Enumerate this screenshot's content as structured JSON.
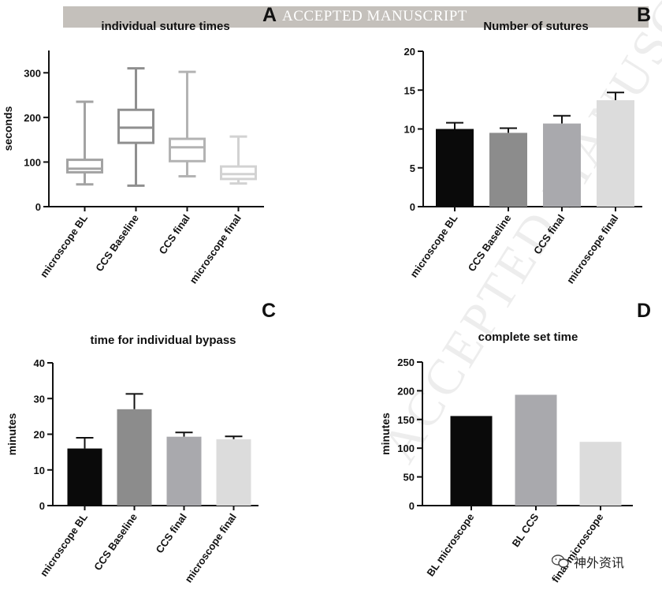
{
  "banner": {
    "text": "ACCEPTED MANUSCRIPT"
  },
  "watermark": {
    "text": "ACCEPTED MANUSCRIPT"
  },
  "footer": {
    "label": "神外资讯",
    "icon": "wechat-icon"
  },
  "colors": {
    "black": "#0a0a0a",
    "dark_gray": "#8c8c8c",
    "mid_gray": "#a9a9ad",
    "light_gray": "#dcdcdc",
    "box_bl": "#a3a3a3",
    "box_ccs_bl": "#8f8f8f",
    "box_ccs_final": "#b3b3b3",
    "box_micro_final": "#d2d2d2"
  },
  "chart_data": [
    {
      "panel": "A",
      "type": "box",
      "title": "individual suture times",
      "xlabel": "",
      "ylabel": "seconds",
      "ylim": [
        0,
        350
      ],
      "yticks": [
        0,
        100,
        200,
        300
      ],
      "categories": [
        "microscope BL",
        "CCS Baseline",
        "CCS final",
        "microscope  final"
      ],
      "boxes": [
        {
          "min": 50,
          "q1": 77,
          "median": 85,
          "q3": 105,
          "max": 235
        },
        {
          "min": 47,
          "q1": 143,
          "median": 177,
          "q3": 217,
          "max": 310
        },
        {
          "min": 68,
          "q1": 102,
          "median": 133,
          "q3": 152,
          "max": 302
        },
        {
          "min": 52,
          "q1": 62,
          "median": 73,
          "q3": 90,
          "max": 157
        }
      ]
    },
    {
      "panel": "B",
      "type": "bar",
      "title": "Number of sutures",
      "xlabel": "",
      "ylabel": "",
      "ylim": [
        0,
        20
      ],
      "yticks": [
        0,
        5,
        10,
        15,
        20
      ],
      "categories": [
        "microscope BL",
        "CCS Baseline",
        "CCS final",
        "microscope  final"
      ],
      "values": [
        10,
        9.5,
        10.7,
        13.7
      ],
      "errors": [
        0.8,
        0.6,
        1.0,
        1.0
      ]
    },
    {
      "panel": "C",
      "type": "bar",
      "title": "time for  individual bypass",
      "xlabel": "",
      "ylabel": "minutes",
      "ylim": [
        0,
        40
      ],
      "yticks": [
        0,
        10,
        20,
        30,
        40
      ],
      "categories": [
        "microscope BL",
        "CCS Baseline",
        "CCS final",
        "microscope  final"
      ],
      "values": [
        16,
        27,
        19.3,
        18.6
      ],
      "errors": [
        3,
        4.3,
        1.2,
        0.8
      ]
    },
    {
      "panel": "D",
      "type": "bar",
      "title": "complete set time",
      "xlabel": "",
      "ylabel": "minutes",
      "ylim": [
        0,
        250
      ],
      "yticks": [
        0,
        50,
        100,
        150,
        200,
        250
      ],
      "categories": [
        "BL microscope",
        "BL CCS",
        "final microscope"
      ],
      "values": [
        156,
        193,
        111
      ],
      "errors": [
        0,
        0,
        0
      ]
    }
  ]
}
